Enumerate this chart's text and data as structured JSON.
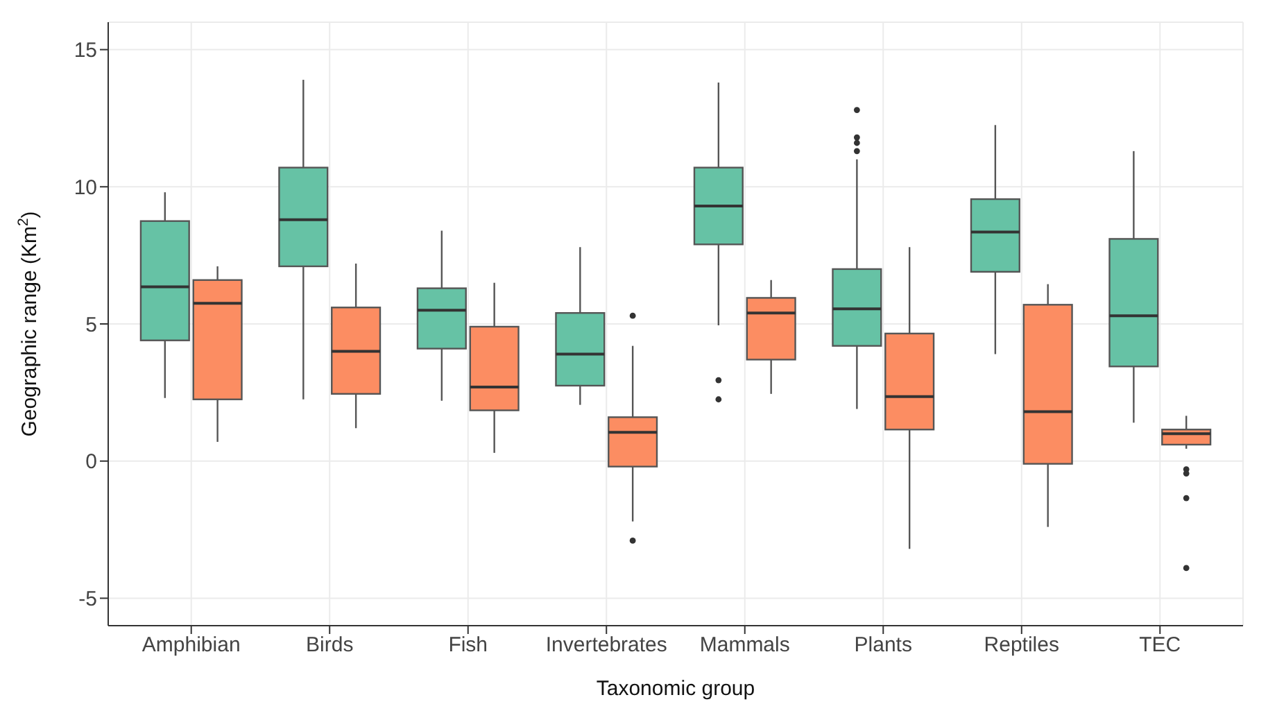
{
  "chart_data": {
    "type": "box",
    "xlabel": "Taxonomic group",
    "ylabel": "Geographic range (Km$^{2}$)",
    "categories": [
      "Amphibian",
      "Birds",
      "Fish",
      "Invertebrates",
      "Mammals",
      "Plants",
      "Reptiles",
      "TEC"
    ],
    "ylim": [
      -6,
      16
    ],
    "yticks": [
      -5,
      0,
      5,
      10,
      15
    ],
    "grid": true,
    "series": [
      {
        "color": "#66c2a5",
        "boxes": [
          {
            "low": 2.3,
            "q1": 4.4,
            "median": 6.35,
            "q3": 8.75,
            "high": 9.8
          },
          {
            "low": 2.25,
            "q1": 7.1,
            "median": 8.8,
            "q3": 10.7,
            "high": 13.9
          },
          {
            "low": 2.2,
            "q1": 4.1,
            "median": 5.5,
            "q3": 6.3,
            "high": 8.4
          },
          {
            "low": 2.05,
            "q1": 2.75,
            "median": 3.9,
            "q3": 5.4,
            "high": 7.8
          },
          {
            "low": 4.95,
            "q1": 7.9,
            "median": 9.3,
            "q3": 10.7,
            "high": 13.8,
            "outliers": [
              2.95,
              2.25
            ]
          },
          {
            "low": 1.9,
            "q1": 4.2,
            "median": 5.55,
            "q3": 7.0,
            "high": 11.0,
            "outliers": [
              12.8,
              11.8,
              11.6,
              11.3
            ]
          },
          {
            "low": 3.9,
            "q1": 6.9,
            "median": 8.35,
            "q3": 9.55,
            "high": 12.25
          },
          {
            "low": 1.4,
            "q1": 3.45,
            "median": 5.3,
            "q3": 8.1,
            "high": 11.3
          }
        ]
      },
      {
        "color": "#fc8d62",
        "boxes": [
          {
            "low": 0.7,
            "q1": 2.25,
            "median": 5.75,
            "q3": 6.6,
            "high": 7.1
          },
          {
            "low": 1.2,
            "q1": 2.45,
            "median": 4.0,
            "q3": 5.6,
            "high": 7.2
          },
          {
            "low": 0.3,
            "q1": 1.85,
            "median": 2.7,
            "q3": 4.9,
            "high": 6.5
          },
          {
            "low": -2.2,
            "q1": -0.2,
            "median": 1.05,
            "q3": 1.6,
            "high": 4.2,
            "outliers": [
              5.3,
              -2.9
            ]
          },
          {
            "low": 2.45,
            "q1": 3.7,
            "median": 5.4,
            "q3": 5.95,
            "high": 6.6
          },
          {
            "low": -3.2,
            "q1": 1.15,
            "median": 2.35,
            "q3": 4.65,
            "high": 7.8
          },
          {
            "low": -2.4,
            "q1": -0.1,
            "median": 1.8,
            "q3": 5.7,
            "high": 6.45
          },
          {
            "low": 0.45,
            "q1": 0.6,
            "median": 1.0,
            "q3": 1.15,
            "high": 1.65,
            "outliers": [
              -0.3,
              -0.45,
              -1.35,
              -3.9
            ]
          }
        ]
      }
    ]
  }
}
